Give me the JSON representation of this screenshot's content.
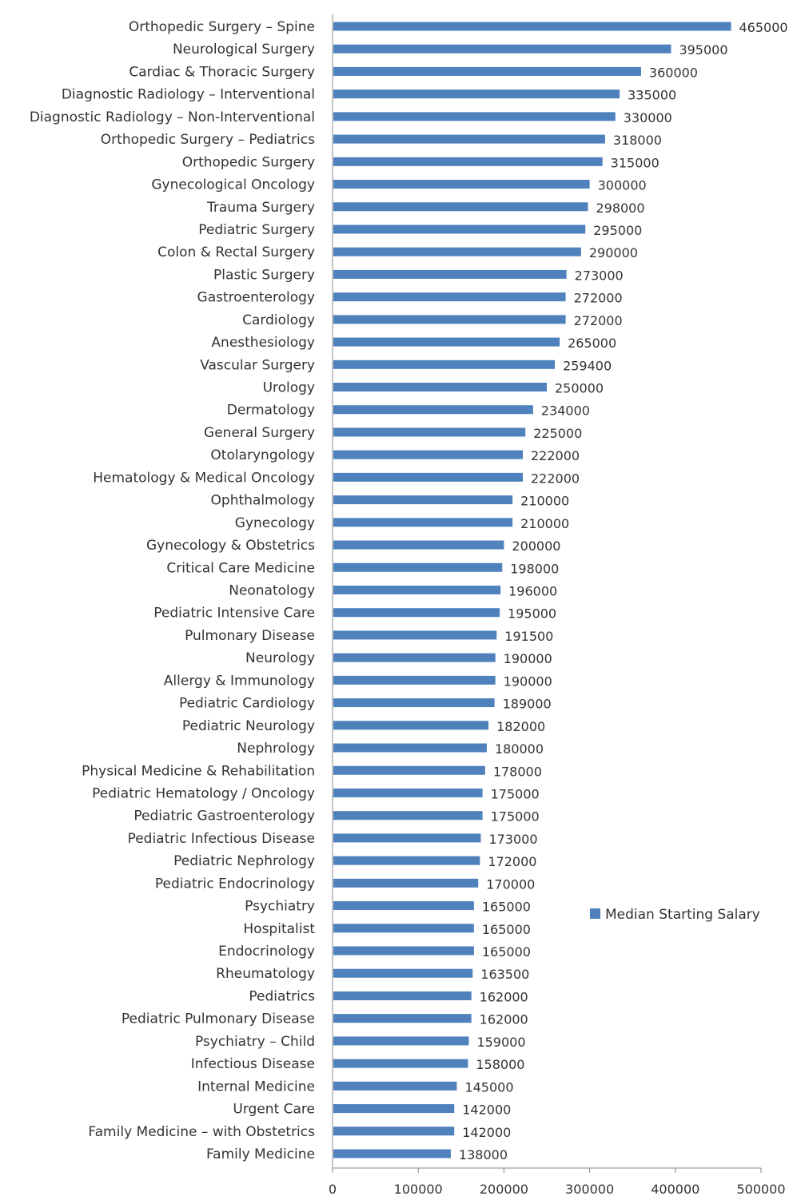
{
  "chart_data": {
    "type": "bar",
    "orientation": "horizontal",
    "categories": [
      "Orthopedic Surgery – Spine",
      "Neurological Surgery",
      "Cardiac & Thoracic Surgery",
      "Diagnostic Radiology  – Interventional",
      "Diagnostic Radiology  – Non-Interventional",
      "Orthopedic Surgery – Pediatrics",
      "Orthopedic Surgery",
      "Gynecological Oncology",
      "Trauma Surgery",
      "Pediatric Surgery",
      "Colon & Rectal Surgery",
      "Plastic  Surgery",
      "Gastroenterology",
      "Cardiology",
      "Anesthesiology",
      "Vascular Surgery",
      "Urology",
      "Dermatology",
      "General Surgery",
      "Otolaryngology",
      "Hematology  & Medical Oncology",
      "Ophthalmology",
      "Gynecology",
      "Gynecology & Obstetrics",
      "Critical Care Medicine",
      "Neonatology",
      "Pediatric Intensive Care",
      "Pulmonary Disease",
      "Neurology",
      "Allergy & Immunology",
      "Pediatric Cardiology",
      "Pediatric Neurology",
      "Nephrology",
      "Physical Medicine & Rehabilitation",
      "Pediatric Hematology  / Oncology",
      "Pediatric Gastroenterology",
      "Pediatric Infectious Disease",
      "Pediatric Nephrology",
      "Pediatric Endocrinology",
      "Psychiatry",
      "Hospitalist",
      "Endocrinology",
      "Rheumatology",
      "Pediatrics",
      "Pediatric Pulmonary  Disease",
      "Psychiatry – Child",
      "Infectious Disease",
      "Internal Medicine",
      "Urgent Care",
      "Family Medicine – with  Obstetrics",
      "Family Medicine"
    ],
    "series": [
      {
        "name": "Median Starting Salary",
        "color": "#4f81bd",
        "values": [
          465000,
          395000,
          360000,
          335000,
          330000,
          318000,
          315000,
          300000,
          298000,
          295000,
          290000,
          273000,
          272000,
          272000,
          265000,
          259400,
          250000,
          234000,
          225000,
          222000,
          222000,
          210000,
          210000,
          200000,
          198000,
          196000,
          195000,
          191500,
          190000,
          190000,
          189000,
          182000,
          180000,
          178000,
          175000,
          175000,
          173000,
          172000,
          170000,
          165000,
          165000,
          165000,
          163500,
          162000,
          162000,
          159000,
          158000,
          145000,
          142000,
          142000,
          138000
        ]
      }
    ],
    "xlim": [
      0,
      500000
    ],
    "x_ticks": [
      "0",
      "100000",
      "200000",
      "300000",
      "400000",
      "500000"
    ],
    "legend_position": "right",
    "grid": false
  }
}
